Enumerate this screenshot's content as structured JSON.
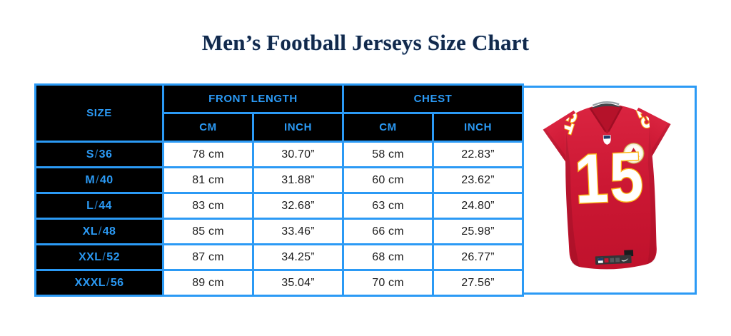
{
  "page": {
    "title": "Men’s Football Jerseys Size Chart"
  },
  "colors": {
    "accent_blue": "#2b9af5",
    "header_bg": "#000000",
    "title_navy": "#12294b",
    "jersey_red": "#c8132f",
    "jersey_gold": "#fdb817"
  },
  "table": {
    "header": {
      "size": "SIZE",
      "front_length": "FRONT LENGTH",
      "chest": "CHEST",
      "cm": "CM",
      "inch": "INCH"
    },
    "rows": [
      {
        "size": "S/36",
        "front_cm": "78 cm",
        "front_inch": "30.70”",
        "chest_cm": "58 cm",
        "chest_inch": "22.83”"
      },
      {
        "size": "M/40",
        "front_cm": "81 cm",
        "front_inch": "31.88”",
        "chest_cm": "60 cm",
        "chest_inch": "23.62”"
      },
      {
        "size": "L/44",
        "front_cm": "83 cm",
        "front_inch": "32.68”",
        "chest_cm": "63 cm",
        "chest_inch": "24.80”"
      },
      {
        "size": "XL/48",
        "front_cm": "85 cm",
        "front_inch": "33.46”",
        "chest_cm": "66 cm",
        "chest_inch": "25.98”"
      },
      {
        "size": "XXL/52",
        "front_cm": "87 cm",
        "front_inch": "34.25”",
        "chest_cm": "68 cm",
        "chest_inch": "26.77”"
      },
      {
        "size": "XXXL/56",
        "front_cm": "89 cm",
        "front_inch": "35.04”",
        "chest_cm": "70 cm",
        "chest_inch": "27.56”"
      }
    ]
  },
  "jersey": {
    "number": "15",
    "description": "red football jersey, number 15"
  },
  "chart_data": {
    "type": "table",
    "title": "Men’s Football Jerseys Size Chart",
    "column_groups": [
      "SIZE",
      "FRONT LENGTH",
      "CHEST"
    ],
    "columns": [
      "SIZE",
      "FRONT LENGTH CM",
      "FRONT LENGTH INCH",
      "CHEST CM",
      "CHEST INCH"
    ],
    "rows": [
      [
        "S/36",
        "78 cm",
        "30.70”",
        "58 cm",
        "22.83”"
      ],
      [
        "M/40",
        "81 cm",
        "31.88”",
        "60 cm",
        "23.62”"
      ],
      [
        "L/44",
        "83 cm",
        "32.68”",
        "63 cm",
        "24.80”"
      ],
      [
        "XL/48",
        "85 cm",
        "33.46”",
        "66 cm",
        "25.98”"
      ],
      [
        "XXL/52",
        "87 cm",
        "34.25”",
        "68 cm",
        "26.77”"
      ],
      [
        "XXXL/56",
        "89 cm",
        "35.04”",
        "70 cm",
        "27.56”"
      ]
    ]
  }
}
